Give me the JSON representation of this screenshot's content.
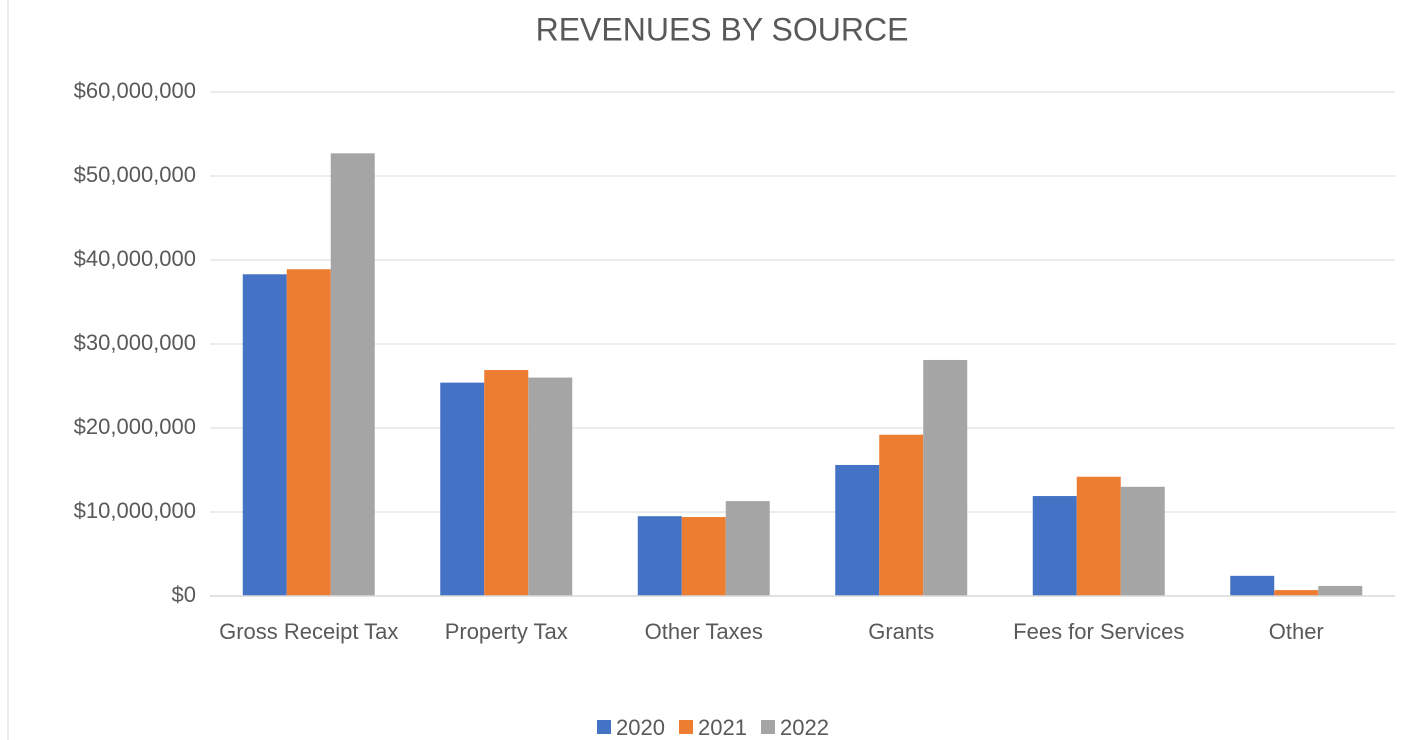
{
  "chart_data": {
    "type": "bar",
    "title": "REVENUES BY SOURCE",
    "categories": [
      "Gross Receipt Tax",
      "Property Tax",
      "Other Taxes",
      "Grants",
      "Fees for Services",
      "Other"
    ],
    "series": [
      {
        "name": "2020",
        "color": "#4472c4",
        "values": [
          38300000,
          25400000,
          9500000,
          15600000,
          11900000,
          2400000
        ]
      },
      {
        "name": "2021",
        "color": "#ed7d31",
        "values": [
          38900000,
          26900000,
          9400000,
          19200000,
          14200000,
          700000
        ]
      },
      {
        "name": "2022",
        "color": "#a5a5a5",
        "values": [
          52700000,
          26000000,
          11300000,
          28100000,
          13000000,
          1200000
        ]
      }
    ],
    "ylim": [
      0,
      60000000
    ],
    "yticks": [
      {
        "value": 0,
        "label": "$0"
      },
      {
        "value": 10000000,
        "label": "$10,000,000"
      },
      {
        "value": 20000000,
        "label": "$20,000,000"
      },
      {
        "value": 30000000,
        "label": "$30,000,000"
      },
      {
        "value": 40000000,
        "label": "$40,000,000"
      },
      {
        "value": 50000000,
        "label": "$50,000,000"
      },
      {
        "value": 60000000,
        "label": "$60,000,000"
      }
    ],
    "grid": true,
    "legend": "bottom"
  }
}
